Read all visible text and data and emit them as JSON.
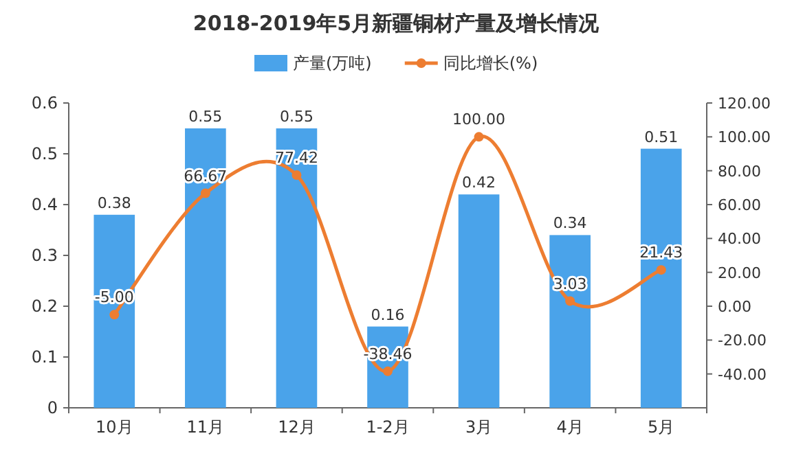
{
  "chart_data": {
    "type": "bar",
    "title": "2018-2019年5月新疆铜材产量及增长情况",
    "categories": [
      "10月",
      "11月",
      "12月",
      "1-2月",
      "3月",
      "4月",
      "5月"
    ],
    "series": [
      {
        "name": "产量(万吨)",
        "color": "#4aa3ea",
        "values": [
          0.38,
          0.55,
          0.55,
          0.16,
          0.42,
          0.34,
          0.51
        ],
        "value_labels": [
          "0.38",
          "0.55",
          "0.55",
          "0.16",
          "0.42",
          "0.34",
          "0.51"
        ]
      },
      {
        "name": "同比增长(%)",
        "type": "line",
        "axis": "y2",
        "color": "#ed7d31",
        "marker": "circle",
        "values": [
          -5.0,
          66.67,
          77.42,
          -38.46,
          100.0,
          3.03,
          21.43
        ],
        "value_labels": [
          "-5.00",
          "66.67",
          "77.42",
          "-38.46",
          "100.00",
          "3.03",
          "21.43"
        ]
      }
    ],
    "ylim": [
      0,
      0.6
    ],
    "yticks": [
      0,
      0.1,
      0.2,
      0.3,
      0.4,
      0.5,
      0.6
    ],
    "y2lim": [
      -60,
      120
    ],
    "y2ticks": [
      {
        "value": -40,
        "label": "-40.00"
      },
      {
        "value": -20,
        "label": "-20.00"
      },
      {
        "value": 0,
        "label": "0.00"
      },
      {
        "value": 20,
        "label": "20.00"
      },
      {
        "value": 40,
        "label": "40.00"
      },
      {
        "value": 60,
        "label": "60.00"
      },
      {
        "value": 80,
        "label": "80.00"
      },
      {
        "value": 100,
        "label": "100.00"
      },
      {
        "value": 120,
        "label": "120.00"
      }
    ],
    "legend": "top",
    "grid": false
  }
}
